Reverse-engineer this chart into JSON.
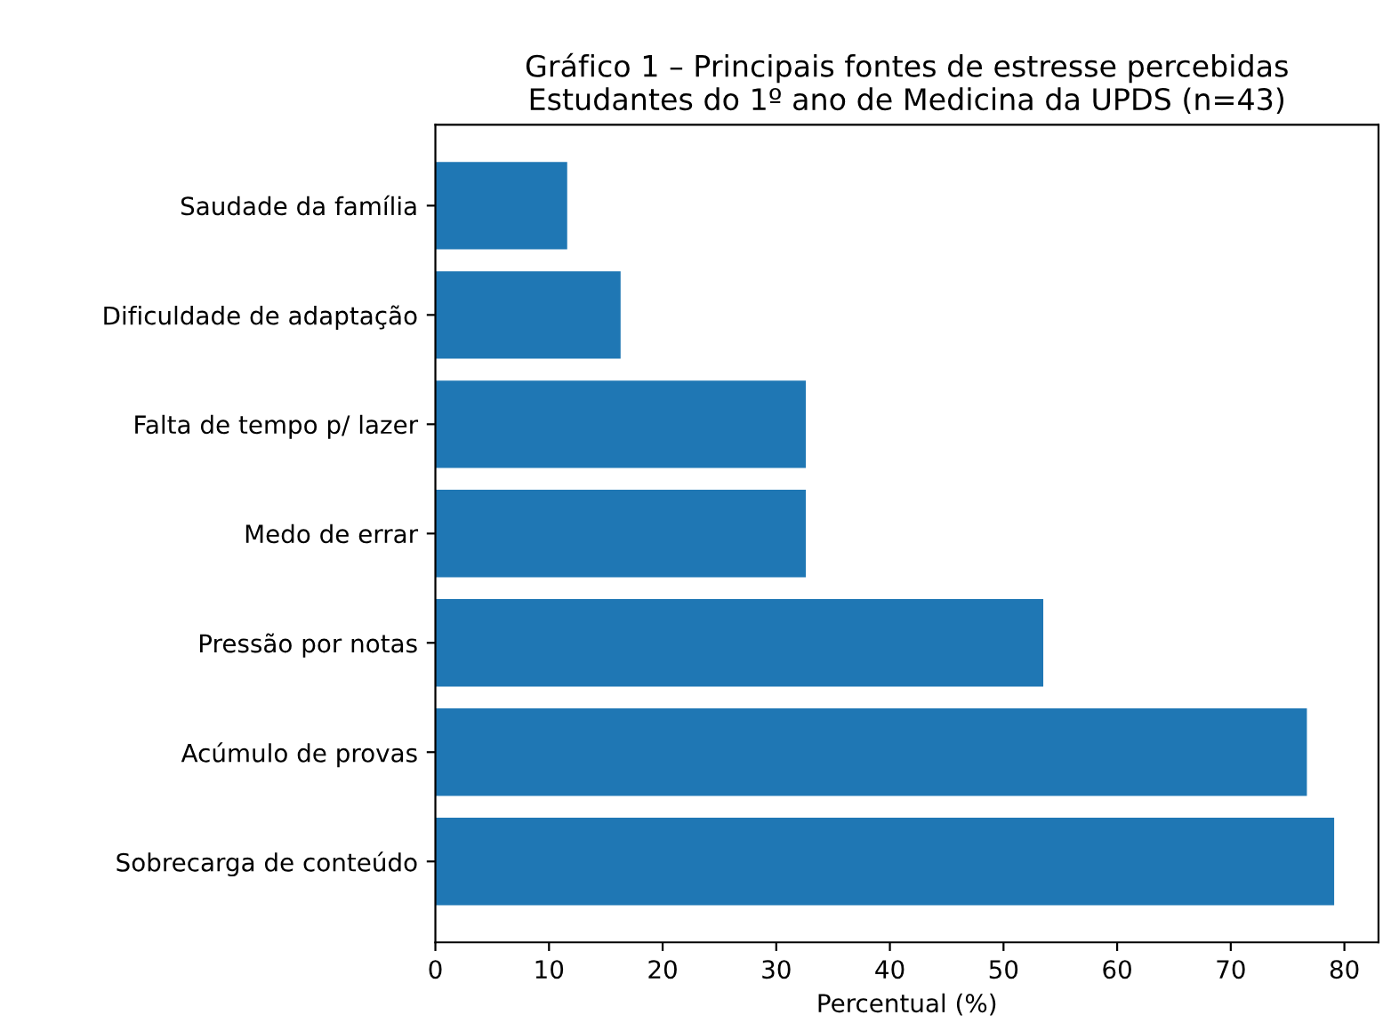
{
  "chart_data": {
    "type": "bar",
    "orientation": "horizontal",
    "title": "Gráfico 1 – Principais fontes de estresse percebidas\nEstudantes do 1º ano de Medicina da UPDS (n=43)",
    "xlabel": "Percentual (%)",
    "categories": [
      "Saudade da família",
      "Dificuldade de adaptação",
      "Falta de tempo p/ lazer",
      "Medo de errar",
      "Pressão por notas",
      "Acúmulo de provas",
      "Sobrecarga de conteúdo"
    ],
    "values": [
      11.6,
      16.3,
      32.6,
      32.6,
      53.5,
      76.7,
      79.1
    ],
    "color": "#1f77b4",
    "xlim": [
      0,
      83
    ],
    "xticks": [
      0,
      10,
      20,
      30,
      40,
      50,
      60,
      70,
      80
    ],
    "grid": false,
    "legend": false
  }
}
